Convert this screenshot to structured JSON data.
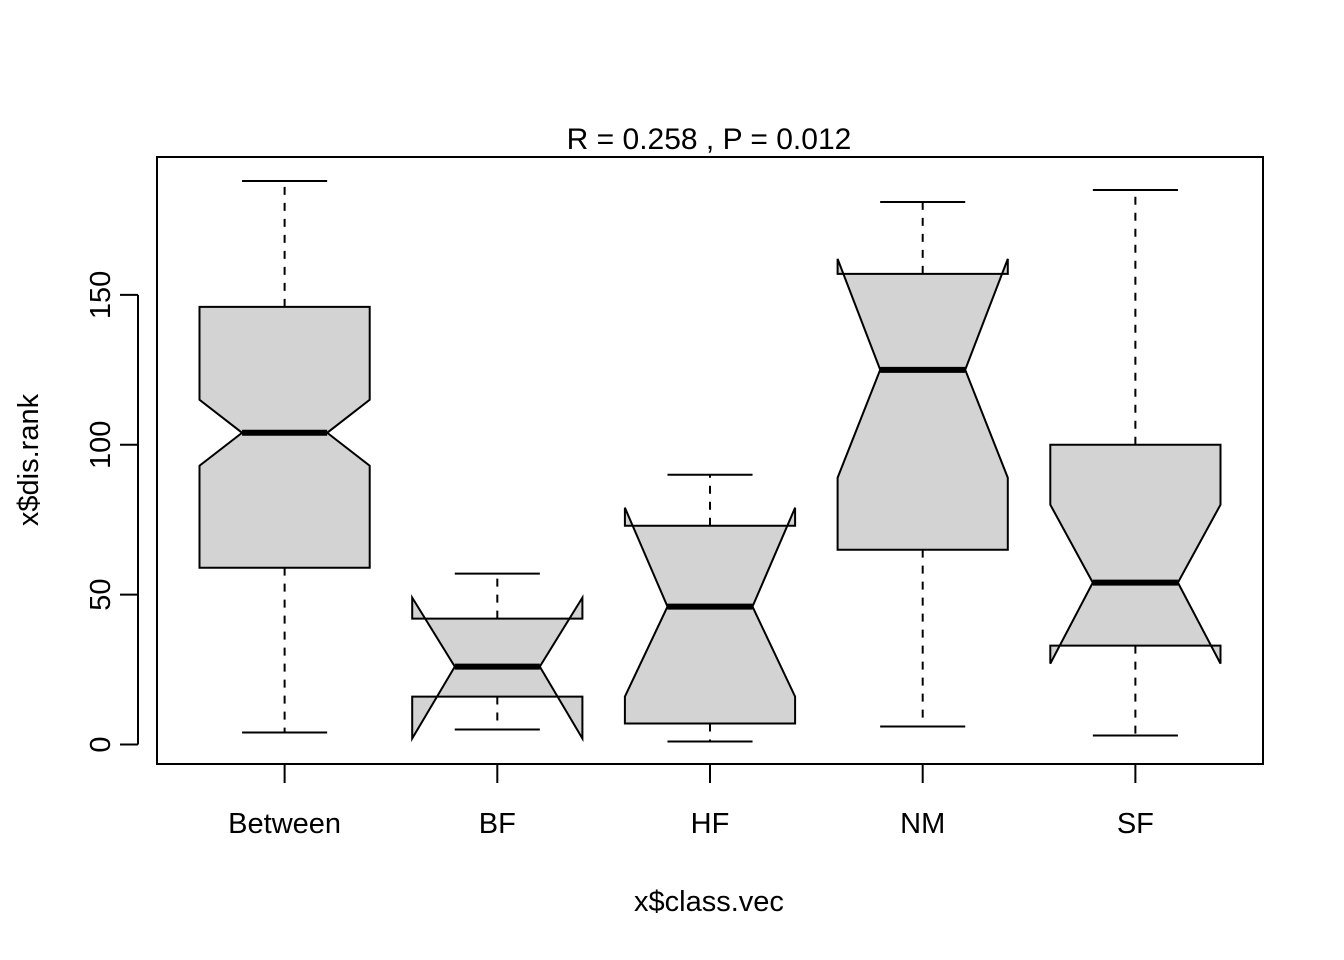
{
  "chart_data": {
    "type": "boxplot",
    "notched": true,
    "title": "R =  0.258 ,  P =  0.012",
    "xlabel": "x$class.vec",
    "ylabel": "x$dis.rank",
    "categories": [
      "Between",
      "BF",
      "HF",
      "NM",
      "SF"
    ],
    "yticks": [
      0,
      50,
      100,
      150
    ],
    "ylim": [
      -6.5,
      196
    ],
    "box_fill": "#d3d3d3",
    "boxes": [
      {
        "category": "Between",
        "whisker_low": 4,
        "q1": 59,
        "median": 104,
        "q3": 146,
        "whisker_high": 188,
        "notch_low": 93,
        "notch_high": 115
      },
      {
        "category": "BF",
        "whisker_low": 5,
        "q1": 16,
        "median": 26,
        "q3": 42,
        "whisker_high": 57,
        "notch_low": 2,
        "notch_high": 49
      },
      {
        "category": "HF",
        "whisker_low": 1,
        "q1": 7,
        "median": 46,
        "q3": 73,
        "whisker_high": 90,
        "notch_low": 16,
        "notch_high": 79
      },
      {
        "category": "NM",
        "whisker_low": 6,
        "q1": 65,
        "median": 125,
        "q3": 157,
        "whisker_high": 181,
        "notch_low": 89,
        "notch_high": 162
      },
      {
        "category": "SF",
        "whisker_low": 3,
        "q1": 33,
        "median": 54,
        "q3": 100,
        "whisker_high": 185,
        "notch_low": 27,
        "notch_high": 80
      }
    ]
  }
}
